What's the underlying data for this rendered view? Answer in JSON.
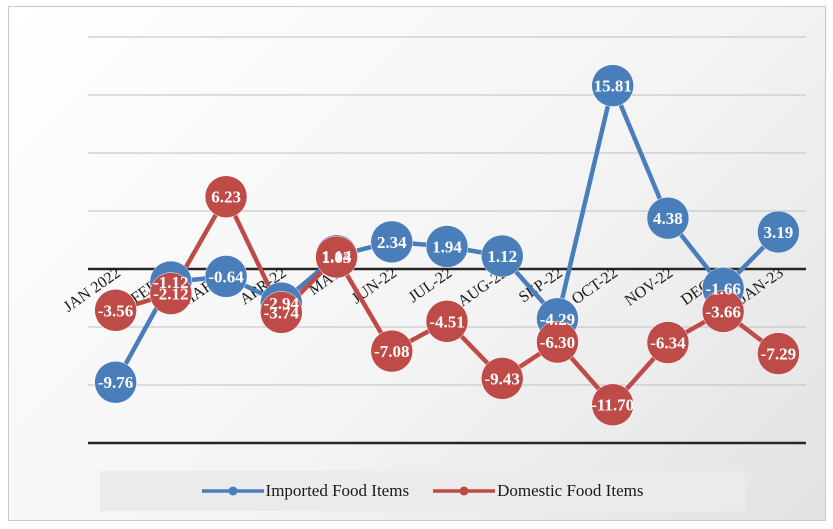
{
  "chart_data": {
    "type": "line",
    "categories": [
      "JAN 2022",
      "FEB-22",
      "MAR-22",
      "APR-22",
      "MAY",
      "JUN-22",
      "JUL-22",
      "AUG-22",
      "SEP-22",
      "OCT-22",
      "NOV-22",
      "DEC-22",
      "JAN-23"
    ],
    "series": [
      {
        "name": "Imported Food Items",
        "color": "#4a7ebb",
        "values": [
          -9.76,
          -1.12,
          -0.64,
          -2.94,
          1.14,
          2.34,
          1.94,
          1.12,
          -4.29,
          15.81,
          4.38,
          -1.66,
          3.19
        ],
        "labels": [
          "-9.76",
          "-1.12",
          "-0.64",
          "-2.94",
          "1.14",
          "2.34",
          "1.94",
          "1.12",
          "-4.29",
          "15.81",
          "4.38",
          "-1.66",
          "3.19"
        ]
      },
      {
        "name": "Domestic Food Items",
        "color": "#be4b48",
        "values": [
          -3.56,
          -2.12,
          6.23,
          -3.74,
          1.03,
          -7.08,
          -4.51,
          -9.43,
          -6.3,
          -11.7,
          -6.34,
          -3.66,
          -7.29
        ],
        "labels": [
          "-3.56",
          "-2.12",
          "6.23",
          "-3.74",
          "1.03",
          "-7.08",
          "-4.51",
          "-9.43",
          "-6.30",
          "-11.70",
          "-6.34",
          "-3.66",
          "-7.29"
        ]
      }
    ],
    "ylim": [
      -15,
      20
    ],
    "grid": true,
    "legend_position": "bottom"
  },
  "legend": {
    "imported": "Imported Food Items",
    "domestic": "Domestic Food Items"
  }
}
